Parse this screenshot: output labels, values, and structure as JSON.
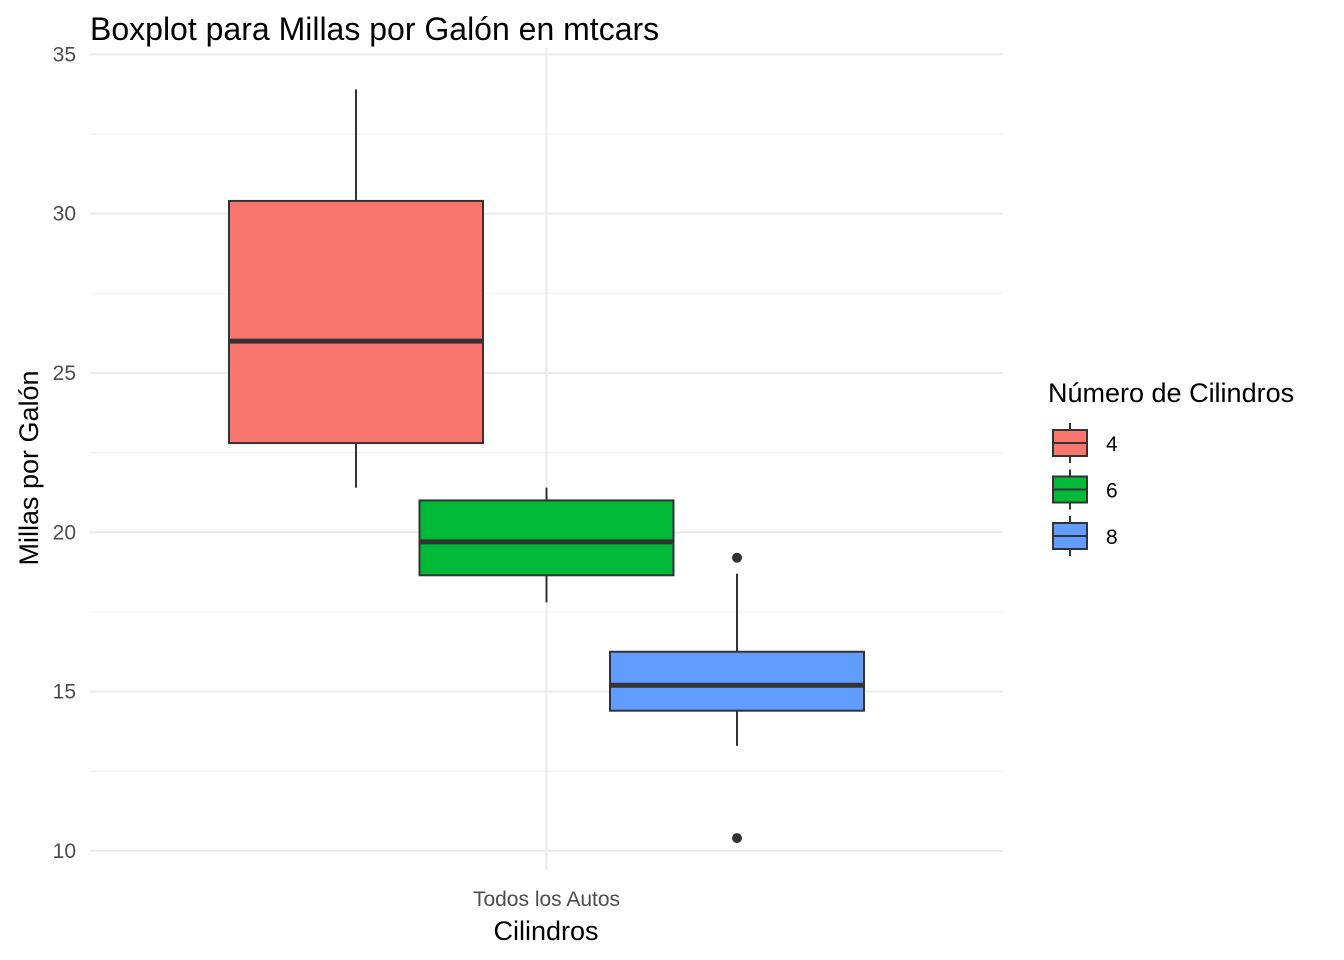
{
  "chart_data": {
    "type": "boxplot",
    "title": "Boxplot para Millas por Galón en mtcars",
    "xlabel": "Cilindros",
    "ylabel": "Millas por Galón",
    "categories": [
      "Todos los Autos"
    ],
    "ylim": [
      9.4,
      35.2
    ],
    "yticks": [
      10,
      15,
      20,
      25,
      30,
      35
    ],
    "grid": true,
    "legend": {
      "title": "Número de Cilindros",
      "position": "right",
      "entries": [
        "4",
        "6",
        "8"
      ]
    },
    "series": [
      {
        "name": "4",
        "color": "#F8766D",
        "min": 21.4,
        "q1": 22.8,
        "median": 26.0,
        "q3": 30.4,
        "max": 33.9,
        "outliers": []
      },
      {
        "name": "6",
        "color": "#00BA38",
        "min": 17.8,
        "q1": 18.65,
        "median": 19.7,
        "q3": 21.0,
        "max": 21.4,
        "outliers": []
      },
      {
        "name": "8",
        "color": "#619CFF",
        "min": 13.3,
        "q1": 14.4,
        "median": 15.2,
        "q3": 16.25,
        "max": 18.7,
        "outliers": [
          10.4,
          19.2
        ]
      }
    ]
  }
}
